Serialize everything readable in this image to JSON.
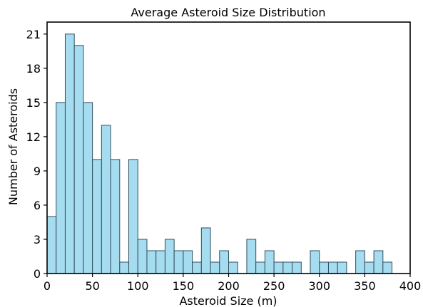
{
  "chart_data": {
    "type": "bar",
    "title": "Average Asteroid Size Distribution",
    "xlabel": "Asteroid Size (m)",
    "ylabel": "Number of Asteroids",
    "xlim": [
      0,
      400
    ],
    "ylim": [
      0,
      22.05
    ],
    "xticks": [
      0,
      50,
      100,
      150,
      200,
      250,
      300,
      350,
      400
    ],
    "yticks": [
      0,
      3,
      6,
      9,
      12,
      15,
      18,
      21
    ],
    "bin_width": 10,
    "bins": [
      {
        "x": 0,
        "count": 5
      },
      {
        "x": 10,
        "count": 15
      },
      {
        "x": 20,
        "count": 21
      },
      {
        "x": 30,
        "count": 20
      },
      {
        "x": 40,
        "count": 15
      },
      {
        "x": 50,
        "count": 10
      },
      {
        "x": 60,
        "count": 13
      },
      {
        "x": 70,
        "count": 10
      },
      {
        "x": 80,
        "count": 1
      },
      {
        "x": 90,
        "count": 10
      },
      {
        "x": 100,
        "count": 3
      },
      {
        "x": 110,
        "count": 2
      },
      {
        "x": 120,
        "count": 2
      },
      {
        "x": 130,
        "count": 3
      },
      {
        "x": 140,
        "count": 2
      },
      {
        "x": 150,
        "count": 2
      },
      {
        "x": 160,
        "count": 1
      },
      {
        "x": 170,
        "count": 4
      },
      {
        "x": 180,
        "count": 1
      },
      {
        "x": 190,
        "count": 2
      },
      {
        "x": 200,
        "count": 1
      },
      {
        "x": 210,
        "count": 0
      },
      {
        "x": 220,
        "count": 3
      },
      {
        "x": 230,
        "count": 1
      },
      {
        "x": 240,
        "count": 2
      },
      {
        "x": 250,
        "count": 1
      },
      {
        "x": 260,
        "count": 1
      },
      {
        "x": 270,
        "count": 1
      },
      {
        "x": 280,
        "count": 0
      },
      {
        "x": 290,
        "count": 2
      },
      {
        "x": 300,
        "count": 1
      },
      {
        "x": 310,
        "count": 1
      },
      {
        "x": 320,
        "count": 1
      },
      {
        "x": 330,
        "count": 0
      },
      {
        "x": 340,
        "count": 2
      },
      {
        "x": 350,
        "count": 1
      },
      {
        "x": 360,
        "count": 2
      },
      {
        "x": 370,
        "count": 1
      }
    ],
    "bar_color": "#a6dcef",
    "edge_color": "#2f4f5f",
    "grid": false,
    "legend": "none"
  }
}
